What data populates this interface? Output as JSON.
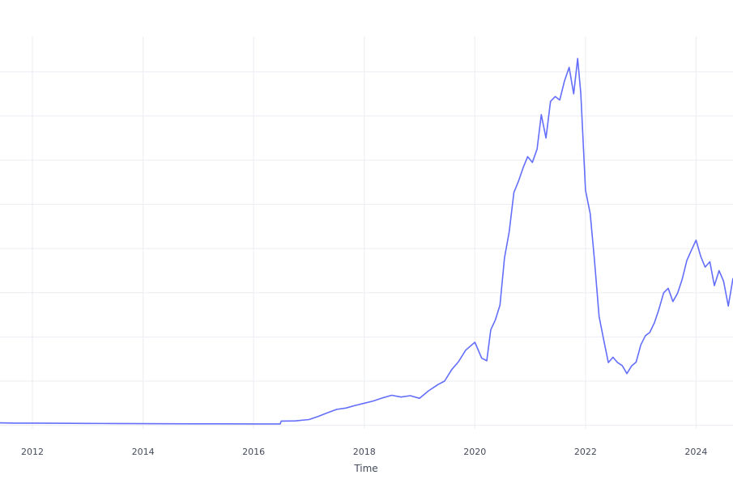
{
  "chart_data": {
    "type": "line",
    "title": "",
    "xlabel": "Time",
    "ylabel": "",
    "grid": true,
    "x_tick_labels": [
      "2012",
      "2014",
      "2016",
      "2018",
      "2020",
      "2022",
      "2024"
    ],
    "xlim": [
      "2011-06-01",
      "2024-09-01"
    ],
    "series": [
      {
        "color": "#636efa",
        "x": [
          "2011-06-01",
          "2011-09-01",
          "2012-01-01",
          "2012-06-01",
          "2013-01-01",
          "2013-06-01",
          "2014-01-01",
          "2014-06-01",
          "2015-01-01",
          "2015-06-01",
          "2016-01-01",
          "2016-06-01",
          "2016-06-25",
          "2016-07-01",
          "2016-10-01",
          "2017-01-01",
          "2017-03-01",
          "2017-05-01",
          "2017-07-01",
          "2017-09-01",
          "2017-11-01",
          "2018-01-01",
          "2018-03-01",
          "2018-05-01",
          "2018-07-01",
          "2018-09-01",
          "2018-11-01",
          "2019-01-01",
          "2019-03-01",
          "2019-05-01",
          "2019-06-15",
          "2019-08-01",
          "2019-09-15",
          "2019-11-01",
          "2020-01-01",
          "2020-02-15",
          "2020-03-20",
          "2020-04-15",
          "2020-05-15",
          "2020-06-15",
          "2020-07-15",
          "2020-08-15",
          "2020-09-15",
          "2020-10-15",
          "2020-11-15",
          "2020-12-15",
          "2021-01-15",
          "2021-02-15",
          "2021-03-15",
          "2021-04-15",
          "2021-05-15",
          "2021-06-15",
          "2021-07-15",
          "2021-08-15",
          "2021-09-15",
          "2021-10-15",
          "2021-11-10",
          "2021-12-01",
          "2022-01-01",
          "2022-02-01",
          "2022-03-01",
          "2022-04-01",
          "2022-05-01",
          "2022-06-01",
          "2022-07-01",
          "2022-08-01",
          "2022-09-01",
          "2022-10-01",
          "2022-11-01",
          "2022-12-01",
          "2023-01-01",
          "2023-02-01",
          "2023-03-01",
          "2023-04-01",
          "2023-05-01",
          "2023-06-01",
          "2023-07-01",
          "2023-08-01",
          "2023-09-01",
          "2023-10-01",
          "2023-11-01",
          "2023-12-01",
          "2024-01-01",
          "2024-02-01",
          "2024-03-01",
          "2024-04-01",
          "2024-05-01",
          "2024-06-01",
          "2024-07-01",
          "2024-08-01",
          "2024-09-01"
        ],
        "y": [
          0.55,
          0.5,
          0.5,
          0.46,
          0.43,
          0.41,
          0.38,
          0.36,
          0.34,
          0.33,
          0.32,
          0.31,
          0.31,
          0.95,
          1.0,
          1.3,
          2.0,
          2.8,
          3.6,
          3.9,
          4.5,
          5.0,
          5.5,
          6.2,
          6.8,
          6.4,
          6.7,
          6.1,
          7.8,
          9.2,
          10.0,
          12.6,
          14.4,
          17.0,
          18.8,
          15.2,
          14.6,
          21.6,
          23.8,
          27.2,
          37.9,
          43.8,
          52.7,
          55.2,
          58.3,
          60.8,
          59.5,
          62.5,
          70.3,
          65.0,
          73.3,
          74.4,
          73.6,
          77.9,
          81.0,
          75.0,
          83.0,
          75.1,
          53.2,
          47.9,
          37.5,
          24.6,
          19.4,
          14.2,
          15.4,
          14.2,
          13.5,
          11.7,
          13.4,
          14.3,
          18.2,
          20.3,
          21.0,
          23.2,
          26.3,
          30.0,
          31.0,
          28.0,
          29.9,
          33.0,
          37.3,
          39.6,
          41.9,
          38.2,
          35.8,
          37.0,
          31.6,
          35.0,
          32.6,
          27.0,
          33.3
        ]
      }
    ]
  }
}
